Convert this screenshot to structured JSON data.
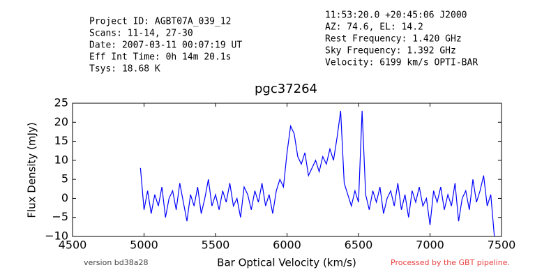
{
  "header": {
    "left": [
      "Project ID: AGBT07A_039_12",
      "Scans: 11-14, 27-30",
      "Date: 2007-03-11 00:07:19 UT",
      "Eff Int Time: 0h 14m 20.1s",
      "Tsys: 18.68 K"
    ],
    "right": [
      "11:53:20.0 +20:45:06 J2000",
      "AZ: 74.6, EL: 14.2",
      "Rest Frequency:   1.420 GHz",
      "Sky Frequency:    1.392 GHz",
      "Velocity: 6199 km/s OPTI-BAR"
    ]
  },
  "footer": {
    "version": "version bd38a28",
    "pipeline": "Processed by the GBT pipeline."
  },
  "chart_data": {
    "type": "line",
    "title": "pgc37264",
    "x_label": "Bar Optical Velocity (km/s)",
    "y_label": "Flux Density (mJy)",
    "xlim": [
      4500,
      7500
    ],
    "xticks": [
      4500,
      5000,
      5500,
      6000,
      6500,
      7000,
      7500
    ],
    "ylim": [
      -10,
      25
    ],
    "yticks": [
      {
        "value": -10,
        "label": "−10"
      },
      {
        "value": -5,
        "label": "−5"
      },
      0,
      5,
      10,
      15,
      20,
      25
    ],
    "x": [
      4975,
      5000,
      5025,
      5050,
      5075,
      5100,
      5125,
      5150,
      5175,
      5200,
      5225,
      5250,
      5275,
      5300,
      5325,
      5350,
      5375,
      5400,
      5425,
      5450,
      5475,
      5500,
      5525,
      5550,
      5575,
      5600,
      5625,
      5650,
      5675,
      5700,
      5725,
      5750,
      5775,
      5800,
      5825,
      5850,
      5875,
      5900,
      5925,
      5950,
      5975,
      6000,
      6025,
      6050,
      6075,
      6100,
      6125,
      6150,
      6175,
      6200,
      6225,
      6250,
      6275,
      6300,
      6325,
      6350,
      6375,
      6400,
      6425,
      6450,
      6475,
      6500,
      6525,
      6550,
      6575,
      6600,
      6625,
      6650,
      6675,
      6700,
      6725,
      6750,
      6775,
      6800,
      6825,
      6850,
      6875,
      6900,
      6925,
      6950,
      6975,
      7000,
      7025,
      7050,
      7075,
      7100,
      7125,
      7150,
      7175,
      7200,
      7225,
      7250,
      7275,
      7300,
      7325,
      7350,
      7375,
      7400,
      7425,
      7450
    ],
    "series": [
      {
        "name": "spectrum",
        "color": "#0000ff",
        "values": [
          8,
          -3,
          2,
          -4,
          1,
          -2,
          3,
          -5,
          0,
          2,
          -3,
          4,
          -1,
          -6,
          1,
          -2,
          3,
          -4,
          0,
          5,
          -2,
          1,
          -3,
          2,
          -1,
          4,
          -2,
          0,
          -5,
          3,
          1,
          -3,
          2,
          -1,
          4,
          -2,
          1,
          -4,
          2,
          5,
          3,
          12,
          19,
          17,
          11,
          9,
          12,
          6,
          8,
          10,
          7,
          11,
          9,
          13,
          10,
          16,
          23,
          4,
          1,
          -2,
          2,
          -1,
          23,
          1,
          -3,
          2,
          -1,
          3,
          -4,
          0,
          2,
          -2,
          4,
          -3,
          1,
          -5,
          2,
          -1,
          3,
          -2,
          0,
          -7,
          2,
          -1,
          3,
          -3,
          1,
          -2,
          4,
          -6,
          0,
          2,
          -3,
          5,
          -1,
          2,
          6,
          -2,
          1,
          -10
        ]
      }
    ]
  }
}
